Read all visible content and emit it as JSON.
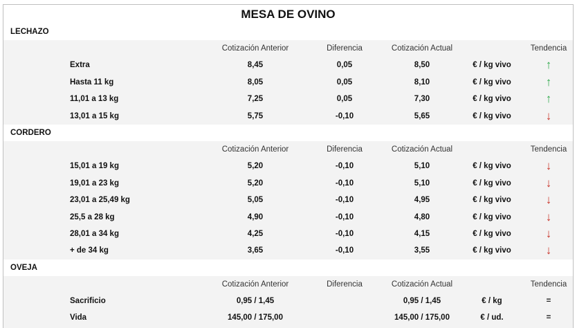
{
  "title": "MESA DE OVINO",
  "colors": {
    "up": "#2ea84a",
    "down": "#c8352b"
  },
  "icons": {
    "up": "arrow-up-icon",
    "down": "arrow-down-icon",
    "equal": "equal-sign"
  },
  "headers": {
    "prev": "Cotización Anterior",
    "diff": "Diferencia",
    "curr": "Cotización Actual",
    "trend": "Tendencia"
  },
  "sections": [
    {
      "name": "LECHAZO",
      "rows": [
        {
          "label": "Extra",
          "prev": "8,45",
          "diff": "0,05",
          "curr": "8,50",
          "unit": "€ / kg vivo",
          "trend": "up",
          "symbol": "↑"
        },
        {
          "label": "Hasta 11 kg",
          "prev": "8,05",
          "diff": "0,05",
          "curr": "8,10",
          "unit": "€ / kg vivo",
          "trend": "up",
          "symbol": "↑"
        },
        {
          "label": "11,01 a 13 kg",
          "prev": "7,25",
          "diff": "0,05",
          "curr": "7,30",
          "unit": "€ / kg vivo",
          "trend": "up",
          "symbol": "↑"
        },
        {
          "label": "13,01 a 15 kg",
          "prev": "5,75",
          "diff": "-0,10",
          "curr": "5,65",
          "unit": "€ / kg vivo",
          "trend": "down",
          "symbol": "↓"
        }
      ]
    },
    {
      "name": "CORDERO",
      "rows": [
        {
          "label": "15,01 a 19 kg",
          "prev": "5,20",
          "diff": "-0,10",
          "curr": "5,10",
          "unit": "€ / kg vivo",
          "trend": "down",
          "symbol": "↓"
        },
        {
          "label": "19,01 a 23 kg",
          "prev": "5,20",
          "diff": "-0,10",
          "curr": "5,10",
          "unit": "€ / kg vivo",
          "trend": "down",
          "symbol": "↓"
        },
        {
          "label": "23,01 a 25,49 kg",
          "prev": "5,05",
          "diff": "-0,10",
          "curr": "4,95",
          "unit": "€ / kg vivo",
          "trend": "down",
          "symbol": "↓"
        },
        {
          "label": "25,5 a 28 kg",
          "prev": "4,90",
          "diff": "-0,10",
          "curr": "4,80",
          "unit": "€ / kg vivo",
          "trend": "down",
          "symbol": "↓"
        },
        {
          "label": "28,01 a 34 kg",
          "prev": "4,25",
          "diff": "-0,10",
          "curr": "4,15",
          "unit": "€ / kg vivo",
          "trend": "down",
          "symbol": "↓"
        },
        {
          "label": "+ de 34 kg",
          "prev": "3,65",
          "diff": "-0,10",
          "curr": "3,55",
          "unit": "€ / kg vivo",
          "trend": "down",
          "symbol": "↓"
        }
      ]
    },
    {
      "name": "OVEJA",
      "rows": [
        {
          "label": "Sacrificio",
          "prev": "0,95 / 1,45",
          "diff": "",
          "curr": "0,95 / 1,45",
          "unit": "€ / kg",
          "trend": "equal",
          "symbol": "="
        },
        {
          "label": "Vida",
          "prev": "145,00 / 175,00",
          "diff": "",
          "curr": "145,00 / 175,00",
          "unit": "€ / ud.",
          "trend": "equal",
          "symbol": "="
        }
      ]
    }
  ]
}
